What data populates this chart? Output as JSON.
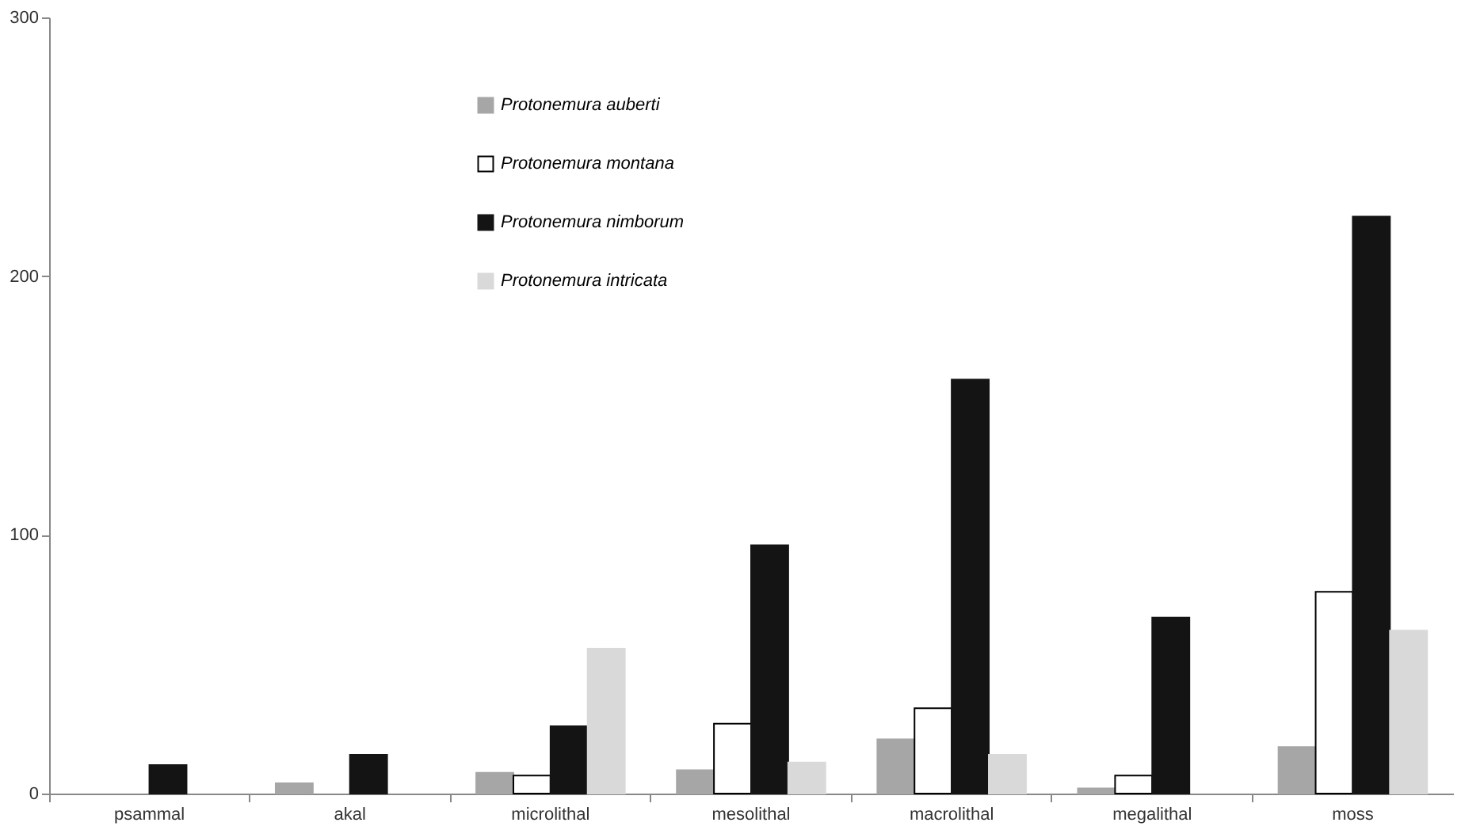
{
  "chart_data": {
    "type": "bar",
    "categories": [
      "psammal",
      "akal",
      "microlithal",
      "mesolithal",
      "macrolithal",
      "megalithal",
      "moss"
    ],
    "series": [
      {
        "name": "Protonemura auberti",
        "color": "#a6a6a6",
        "values": [
          null,
          4,
          8,
          9,
          21,
          2,
          18
        ]
      },
      {
        "name": "Protonemura montana",
        "color": "#ffffff",
        "values": [
          null,
          null,
          7,
          27,
          33,
          7,
          78
        ]
      },
      {
        "name": "Protonemura nimborum",
        "color": "#141414",
        "values": [
          11,
          15,
          26,
          96,
          160,
          68,
          223
        ]
      },
      {
        "name": "Protonemura intricata",
        "color": "#d9d9d9",
        "values": [
          null,
          null,
          56,
          12,
          15,
          null,
          63
        ]
      }
    ],
    "ylim": [
      0,
      300
    ],
    "yticks": [
      0,
      100,
      200,
      300
    ],
    "grid": false,
    "legend": "top"
  }
}
